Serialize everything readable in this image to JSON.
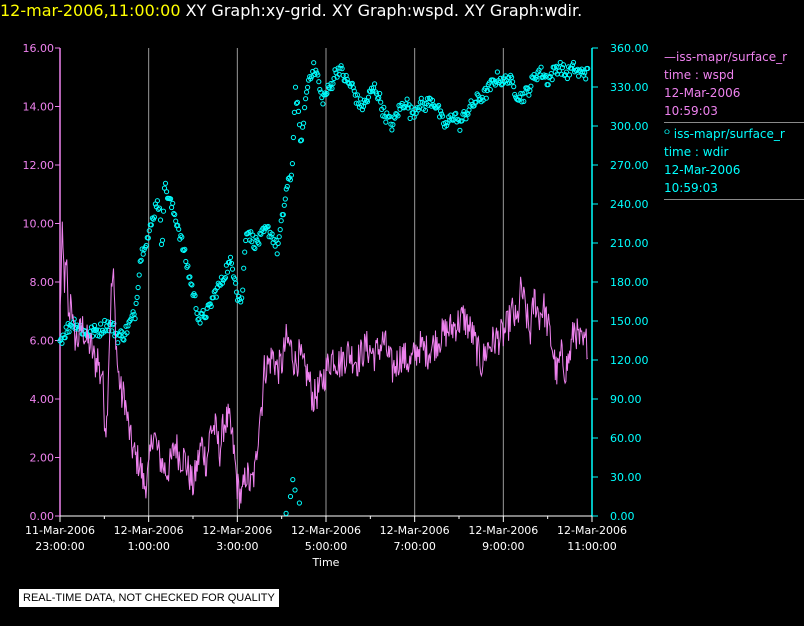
{
  "title": {
    "timestamp": "12-mar-2006,11:00:00",
    "text": " XY Graph:xy-grid.  XY Graph:wspd.  XY Graph:wdir.",
    "timestamp_color": "#ffff00",
    "text_color": "#ffffff"
  },
  "colors": {
    "wspd": "#ee82ee",
    "wdir": "#00ffff",
    "grid": "#9a9a9a",
    "axis_text": "#ffffff"
  },
  "legend": {
    "wspd": {
      "line1": "—iss-mapr/surface_r",
      "line2": "time : wspd",
      "line3": "12-Mar-2006",
      "line4": "10:59:03"
    },
    "wdir": {
      "line1": "ᴼ iss-mapr/surface_r",
      "line2": "time : wdir",
      "line3": "12-Mar-2006",
      "line4": "10:59:03"
    }
  },
  "footer": {
    "quality_notice": "REAL-TIME DATA, NOT CHECKED FOR QUALITY"
  },
  "chart_data": {
    "type": "line",
    "title": "XY Graph:xy-grid.  XY Graph:wspd.  XY Graph:wdir.",
    "xlabel": "Time",
    "x_range_hours": [
      0,
      12
    ],
    "x_ticks": [
      {
        "hour": 0,
        "date": "11-Mar-2006",
        "time": "23:00:00"
      },
      {
        "hour": 2,
        "date": "12-Mar-2006",
        "time": "1:00:00"
      },
      {
        "hour": 4,
        "date": "12-Mar-2006",
        "time": "3:00:00"
      },
      {
        "hour": 6,
        "date": "12-Mar-2006",
        "time": "5:00:00"
      },
      {
        "hour": 8,
        "date": "12-Mar-2006",
        "time": "7:00:00"
      },
      {
        "hour": 10,
        "date": "12-Mar-2006",
        "time": "9:00:00"
      },
      {
        "hour": 12,
        "date": "12-Mar-2006",
        "time": "11:00:00"
      }
    ],
    "grid_hours": [
      2,
      4,
      6,
      8,
      10
    ],
    "left_axis": {
      "series": "wspd",
      "ylim": [
        0,
        16
      ],
      "ticks": [
        "0.00",
        "2.00",
        "4.00",
        "6.00",
        "8.00",
        "10.00",
        "12.00",
        "14.00",
        "16.00"
      ]
    },
    "right_axis": {
      "series": "wdir",
      "ylim": [
        0,
        360
      ],
      "ticks": [
        "0.00",
        "30.00",
        "60.00",
        "90.00",
        "120.00",
        "150.00",
        "180.00",
        "210.00",
        "240.00",
        "270.00",
        "300.00",
        "330.00",
        "360.00"
      ]
    },
    "series": [
      {
        "name": "wspd",
        "axis": "left",
        "style": "line",
        "anchors": [
          [
            0.0,
            7.0
          ],
          [
            0.1,
            9.5
          ],
          [
            0.2,
            8.0
          ],
          [
            0.3,
            8.5
          ],
          [
            0.4,
            6.5
          ],
          [
            0.5,
            7.8
          ],
          [
            0.6,
            6.2
          ],
          [
            0.8,
            6.0
          ],
          [
            1.0,
            6.5
          ],
          [
            1.2,
            6.0
          ],
          [
            1.4,
            5.8
          ],
          [
            1.6,
            5.2
          ],
          [
            1.7,
            5.5
          ],
          [
            1.8,
            4.8
          ],
          [
            1.9,
            5.0
          ],
          [
            2.0,
            3.5
          ],
          [
            2.1,
            3.0
          ],
          [
            2.2,
            5.5
          ],
          [
            2.3,
            7.5
          ],
          [
            2.4,
            8.3
          ],
          [
            2.5,
            6.5
          ],
          [
            2.6,
            5.0
          ],
          [
            2.7,
            4.5
          ],
          [
            2.8,
            4.0
          ],
          [
            2.9,
            4.2
          ],
          [
            3.0,
            3.5
          ],
          [
            3.2,
            2.5
          ],
          [
            3.4,
            2.0
          ],
          [
            3.6,
            1.8
          ],
          [
            3.8,
            1.0
          ],
          [
            4.0,
            1.5
          ],
          [
            4.2,
            3.0
          ],
          [
            4.4,
            2.2
          ],
          [
            4.6,
            1.8
          ],
          [
            4.8,
            1.5
          ],
          [
            5.0,
            1.8
          ],
          [
            5.2,
            2.5
          ],
          [
            5.4,
            2.0
          ],
          [
            5.6,
            2.0
          ],
          [
            5.8,
            1.5
          ],
          [
            6.0,
            1.0
          ],
          [
            6.2,
            1.8
          ],
          [
            6.4,
            2.5
          ],
          [
            6.6,
            1.8
          ],
          [
            6.8,
            3.0
          ],
          [
            7.0,
            3.0
          ],
          [
            7.2,
            2.2
          ],
          [
            7.4,
            3.2
          ],
          [
            7.6,
            3.3
          ],
          [
            7.8,
            2.5
          ],
          [
            8.0,
            1.0
          ],
          [
            8.2,
            0.6
          ],
          [
            8.4,
            1.5
          ],
          [
            8.6,
            1.0
          ],
          [
            8.8,
            1.5
          ],
          [
            9.0,
            3.5
          ],
          [
            9.1,
            3.8
          ],
          [
            9.2,
            5.0
          ],
          [
            9.4,
            5.2
          ],
          [
            9.6,
            5.5
          ],
          [
            9.8,
            5.0
          ],
          [
            10.0,
            5.2
          ],
          [
            10.2,
            6.0
          ],
          [
            10.4,
            5.8
          ],
          [
            10.6,
            5.2
          ],
          [
            10.8,
            5.5
          ],
          [
            11.0,
            5.0
          ],
          [
            11.2,
            4.8
          ],
          [
            11.4,
            4.0
          ],
          [
            11.6,
            4.2
          ],
          [
            11.8,
            4.5
          ],
          [
            12.0,
            5.0
          ],
          [
            12.3,
            5.5
          ],
          [
            12.6,
            5.2
          ],
          [
            13.0,
            5.6
          ],
          [
            13.4,
            5.3
          ],
          [
            13.8,
            5.8
          ],
          [
            14.2,
            5.5
          ],
          [
            14.6,
            6.0
          ],
          [
            15.0,
            5.0
          ],
          [
            15.4,
            5.5
          ],
          [
            15.8,
            5.2
          ],
          [
            16.2,
            5.8
          ],
          [
            16.6,
            5.6
          ],
          [
            17.0,
            6.0
          ],
          [
            17.4,
            6.3
          ],
          [
            17.8,
            6.5
          ],
          [
            18.2,
            6.8
          ],
          [
            18.6,
            6.2
          ],
          [
            19.0,
            5.2
          ],
          [
            19.3,
            5.8
          ],
          [
            19.6,
            6.0
          ],
          [
            20.0,
            6.2
          ],
          [
            20.2,
            6.5
          ],
          [
            20.4,
            7.0
          ],
          [
            20.6,
            6.5
          ],
          [
            20.8,
            7.8
          ],
          [
            21.0,
            7.0
          ],
          [
            21.2,
            6.2
          ],
          [
            21.4,
            7.5
          ],
          [
            21.6,
            6.8
          ],
          [
            21.8,
            7.2
          ],
          [
            22.0,
            6.5
          ],
          [
            22.2,
            5.8
          ],
          [
            22.4,
            4.8
          ],
          [
            22.6,
            5.5
          ],
          [
            22.8,
            5.0
          ],
          [
            23.0,
            5.5
          ],
          [
            23.2,
            6.5
          ],
          [
            23.4,
            6.0
          ],
          [
            23.6,
            5.8
          ],
          [
            23.8,
            6.0
          ]
        ]
      },
      {
        "name": "wdir",
        "axis": "right",
        "style": "markers",
        "anchors": [
          [
            0.0,
            135
          ],
          [
            0.3,
            143
          ],
          [
            0.6,
            150
          ],
          [
            0.9,
            145
          ],
          [
            1.2,
            140
          ],
          [
            1.5,
            142
          ],
          [
            1.8,
            143
          ],
          [
            2.1,
            148
          ],
          [
            2.4,
            145
          ],
          [
            2.6,
            138
          ],
          [
            2.9,
            140
          ],
          [
            3.2,
            150
          ],
          [
            3.4,
            157
          ],
          [
            3.6,
            195
          ],
          [
            3.8,
            210
          ],
          [
            4.0,
            215
          ],
          [
            4.2,
            230
          ],
          [
            4.4,
            245
          ],
          [
            4.5,
            232
          ],
          [
            4.6,
            205
          ],
          [
            4.7,
            255
          ],
          [
            4.9,
            245
          ],
          [
            5.1,
            235
          ],
          [
            5.3,
            225
          ],
          [
            5.5,
            210
          ],
          [
            5.7,
            195
          ],
          [
            5.9,
            180
          ],
          [
            6.1,
            165
          ],
          [
            6.3,
            150
          ],
          [
            6.5,
            155
          ],
          [
            6.7,
            158
          ],
          [
            6.9,
            168
          ],
          [
            7.1,
            175
          ],
          [
            7.3,
            180
          ],
          [
            7.5,
            190
          ],
          [
            7.7,
            195
          ],
          [
            7.9,
            185
          ],
          [
            8.0,
            170
          ],
          [
            8.2,
            165
          ],
          [
            8.4,
            222
          ],
          [
            8.6,
            215
          ],
          [
            8.8,
            210
          ],
          [
            9.0,
            212
          ],
          [
            9.2,
            218
          ],
          [
            9.4,
            220
          ],
          [
            9.6,
            215
          ],
          [
            9.8,
            205
          ],
          [
            10.0,
            225
          ],
          [
            10.2,
            250
          ],
          [
            10.4,
            260
          ],
          [
            10.5,
            275
          ],
          [
            10.6,
            330
          ],
          [
            10.7,
            315
          ],
          [
            10.8,
            300
          ],
          [
            10.9,
            285
          ],
          [
            11.0,
            310
          ],
          [
            11.2,
            335
          ],
          [
            11.4,
            345
          ],
          [
            11.6,
            340
          ],
          [
            11.8,
            320
          ],
          [
            12.0,
            325
          ],
          [
            12.2,
            330
          ],
          [
            12.4,
            340
          ],
          [
            12.6,
            345
          ],
          [
            12.8,
            338
          ],
          [
            13.0,
            333
          ],
          [
            13.2,
            330
          ],
          [
            13.4,
            320
          ],
          [
            13.6,
            315
          ],
          [
            13.8,
            318
          ],
          [
            14.0,
            325
          ],
          [
            14.2,
            330
          ],
          [
            14.4,
            322
          ],
          [
            14.6,
            310
          ],
          [
            14.8,
            305
          ],
          [
            15.0,
            300
          ],
          [
            15.2,
            310
          ],
          [
            15.4,
            315
          ],
          [
            15.6,
            320
          ],
          [
            15.8,
            310
          ],
          [
            16.0,
            312
          ],
          [
            16.2,
            318
          ],
          [
            16.4,
            315
          ],
          [
            16.6,
            318
          ],
          [
            16.8,
            320
          ],
          [
            17.0,
            315
          ],
          [
            17.2,
            305
          ],
          [
            17.4,
            300
          ],
          [
            17.6,
            305
          ],
          [
            17.8,
            310
          ],
          [
            18.0,
            300
          ],
          [
            18.2,
            307
          ],
          [
            18.4,
            312
          ],
          [
            18.6,
            316
          ],
          [
            18.8,
            320
          ],
          [
            19.0,
            322
          ],
          [
            19.2,
            325
          ],
          [
            19.4,
            330
          ],
          [
            19.6,
            335
          ],
          [
            19.8,
            338
          ],
          [
            20.0,
            333
          ],
          [
            20.2,
            338
          ],
          [
            20.4,
            332
          ],
          [
            20.6,
            325
          ],
          [
            20.8,
            322
          ],
          [
            21.0,
            325
          ],
          [
            21.2,
            330
          ],
          [
            21.4,
            338
          ],
          [
            21.6,
            342
          ],
          [
            21.8,
            340
          ],
          [
            22.0,
            335
          ],
          [
            22.2,
            340
          ],
          [
            22.4,
            345
          ],
          [
            22.6,
            345
          ],
          [
            22.8,
            340
          ],
          [
            23.0,
            342
          ],
          [
            23.2,
            345
          ],
          [
            23.4,
            340
          ],
          [
            23.6,
            342
          ],
          [
            23.8,
            340
          ]
        ]
      }
    ]
  }
}
